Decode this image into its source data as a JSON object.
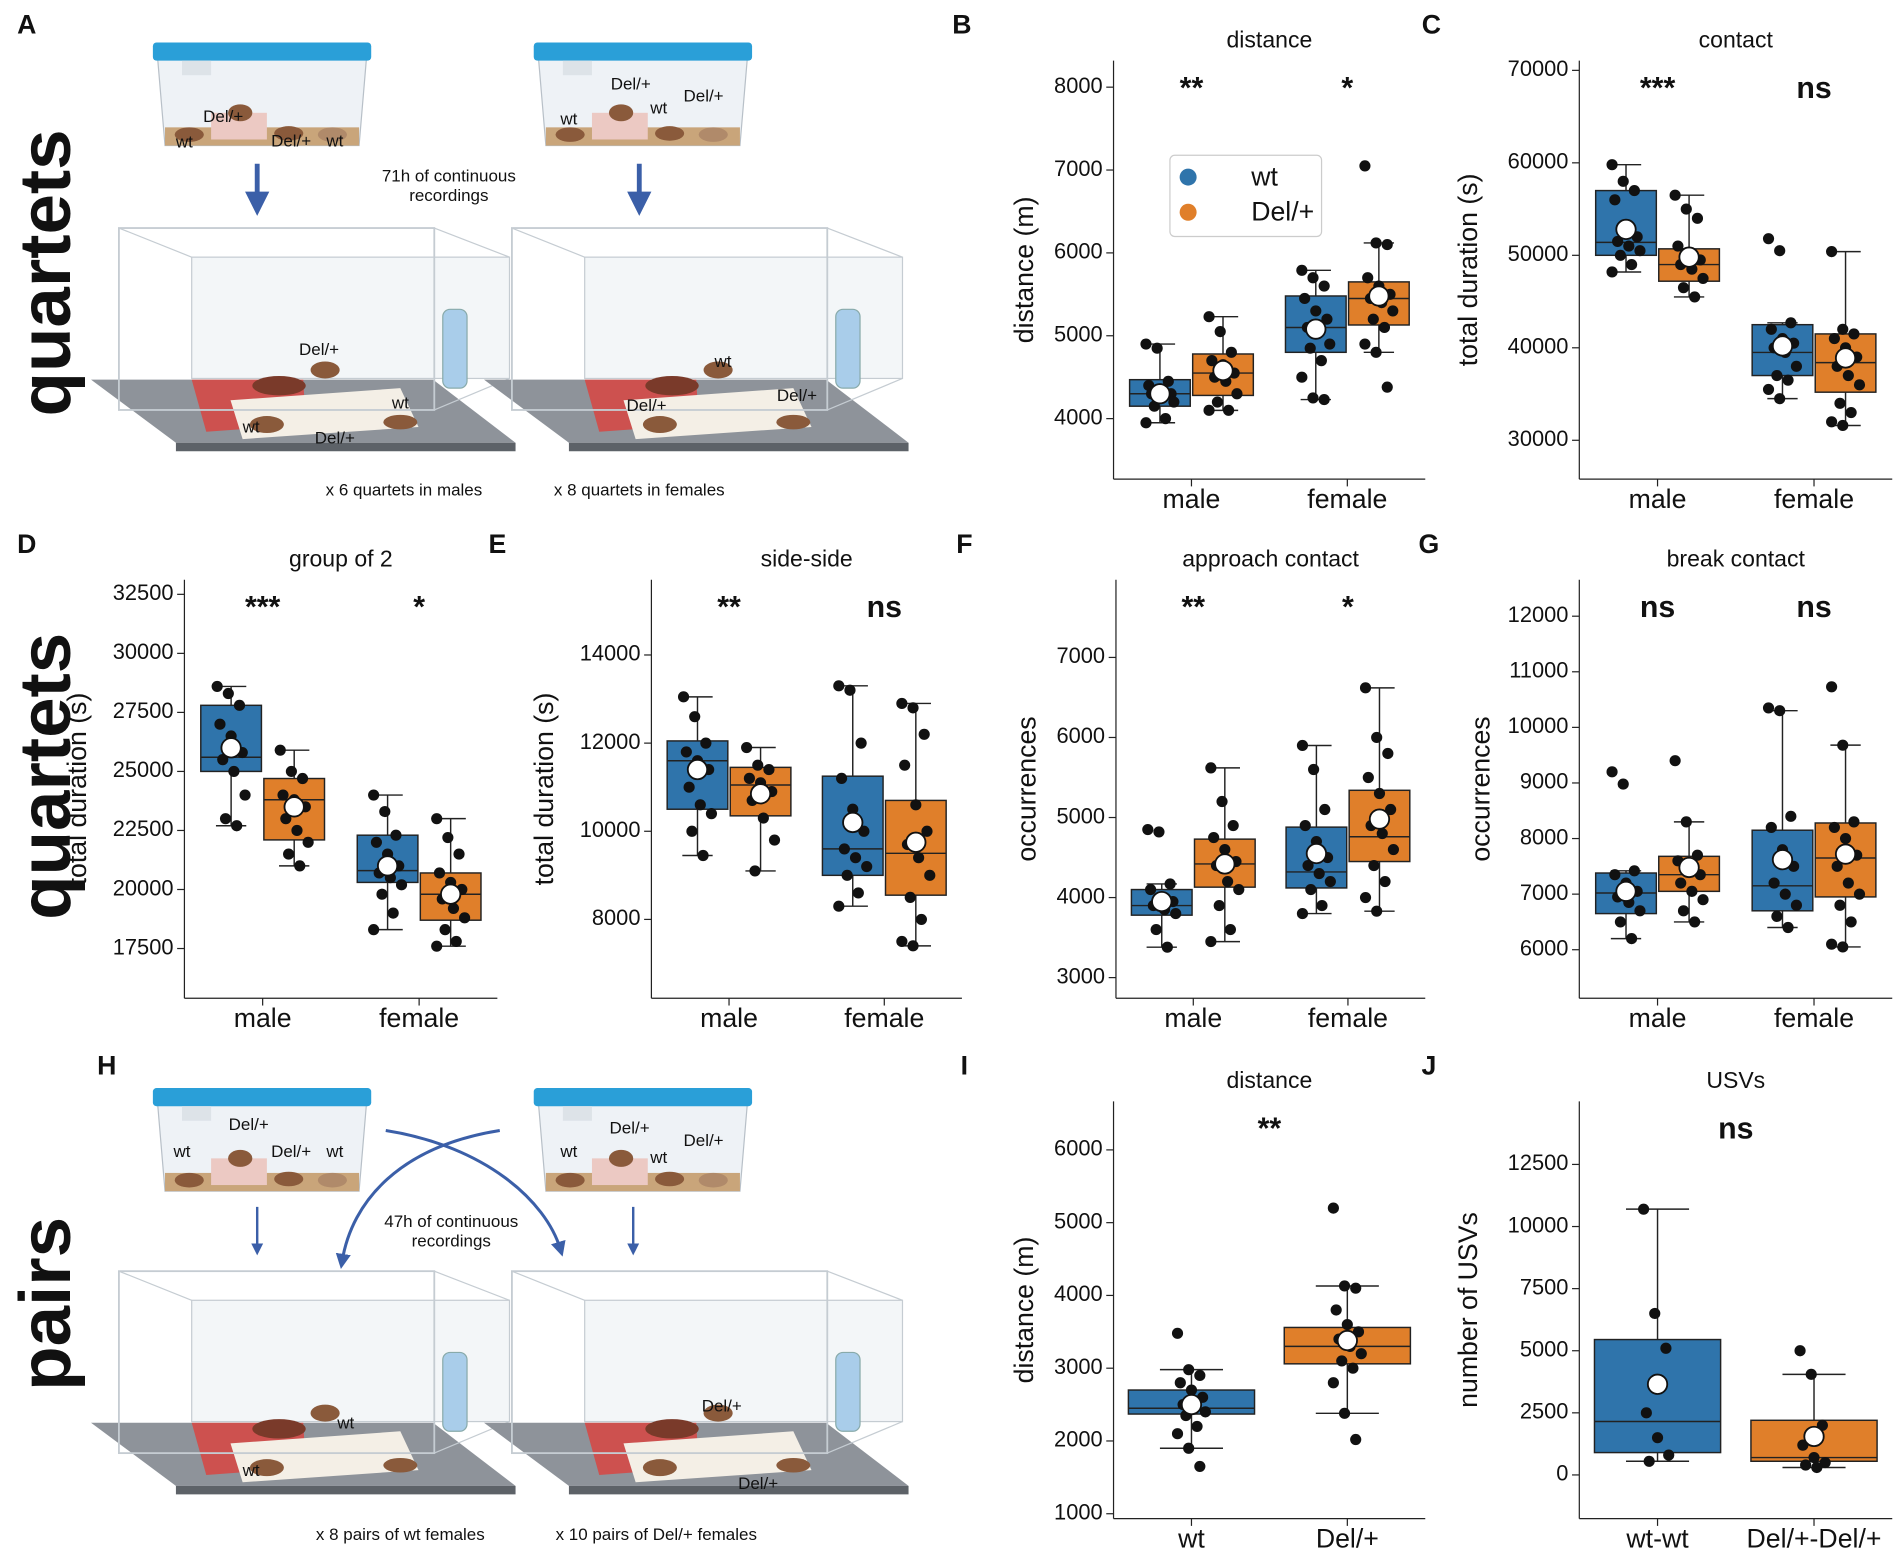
{
  "panel_labels": [
    "A",
    "B",
    "C",
    "D",
    "E",
    "F",
    "G",
    "H",
    "I",
    "J"
  ],
  "row_labels": [
    "quartets",
    "quartets",
    "pairs"
  ],
  "illustrations": {
    "A": {
      "cage_labels": [
        "wt",
        "Del/+",
        "Del/+",
        "wt",
        "Del/+",
        "Del/+",
        "wt",
        "wt",
        "Del/+",
        "wt",
        "wt",
        "Del/+",
        "wt",
        "Del/+",
        "Del/+"
      ],
      "note": [
        "71h of continuous",
        "recordings"
      ],
      "captions": [
        "x 6 quartets in males",
        "x 8 quartets in females"
      ]
    },
    "H": {
      "cage_labels": [
        "Del/+",
        "wt",
        "Del/+",
        "wt",
        "Del/+",
        "wt",
        "wt",
        "Del/+",
        "wt",
        "wt",
        "Del/+",
        "Del/+"
      ],
      "note": [
        "47h of continuous",
        "recordings"
      ],
      "captions": [
        "x 8 pairs of wt females",
        "x 10 pairs of Del/+ females"
      ]
    }
  },
  "chart_data": [
    {
      "type": "box",
      "title": "distance",
      "ylabel": "distance (m)",
      "categories": [
        "male",
        "female"
      ],
      "ylim": [
        3270,
        8320
      ],
      "yticks": [
        4000,
        5000,
        6000,
        7000,
        8000
      ],
      "annotations": [
        "**",
        "*"
      ],
      "legend": "upper center",
      "series": [
        {
          "name": "wt",
          "color": "#2f74ab",
          "boxes": [
            {
              "whislo": 3950,
              "q1": 4150,
              "med": 4300,
              "q3": 4470,
              "whishi": 4900,
              "mean": 4300,
              "points": [
                4900,
                4850,
                4450,
                4400,
                4350,
                4300,
                4300,
                4250,
                4200,
                4150,
                4000,
                3950
              ]
            },
            {
              "whislo": 4230,
              "q1": 4800,
              "med": 5100,
              "q3": 5480,
              "whishi": 5790,
              "mean": 5080,
              "points": [
                5790,
                5700,
                5600,
                5450,
                5300,
                5200,
                5100,
                5050,
                4900,
                4850,
                4700,
                4500,
                4250,
                4230
              ]
            }
          ]
        },
        {
          "name": "Del/+",
          "color": "#e07f2a",
          "boxes": [
            {
              "whislo": 4100,
              "q1": 4280,
              "med": 4550,
              "q3": 4780,
              "whishi": 5230,
              "mean": 4580,
              "points": [
                5230,
                5050,
                4800,
                4700,
                4650,
                4550,
                4500,
                4450,
                4300,
                4200,
                4100,
                4100
              ]
            },
            {
              "whislo": 4800,
              "q1": 5130,
              "med": 5450,
              "q3": 5650,
              "whishi": 6120,
              "mean": 5480,
              "points": [
                7050,
                6120,
                6100,
                5700,
                5600,
                5500,
                5450,
                5400,
                5300,
                5200,
                5100,
                4900,
                4800,
                4380
              ]
            }
          ]
        }
      ]
    },
    {
      "type": "box",
      "title": "contact",
      "ylabel": "total duration (s)",
      "categories": [
        "male",
        "female"
      ],
      "ylim": [
        25800,
        71050
      ],
      "yticks": [
        30000,
        40000,
        50000,
        60000,
        70000
      ],
      "annotations": [
        "***",
        "ns"
      ],
      "series": [
        {
          "color": "#2f74ab",
          "boxes": [
            {
              "whislo": 48200,
              "q1": 50000,
              "med": 51400,
              "q3": 57000,
              "whishi": 59800,
              "mean": 52800,
              "points": [
                59800,
                58000,
                57000,
                56000,
                53000,
                52000,
                51500,
                51000,
                50500,
                50000,
                49000,
                48200
              ]
            },
            {
              "whislo": 34500,
              "q1": 37000,
              "med": 39500,
              "q3": 42500,
              "whishi": 42700,
              "mean": 40200,
              "points": [
                51800,
                50500,
                42700,
                42000,
                41000,
                40500,
                40000,
                39500,
                38000,
                37000,
                36500,
                35500,
                34500
              ]
            }
          ]
        },
        {
          "color": "#e07f2a",
          "boxes": [
            {
              "whislo": 45500,
              "q1": 47200,
              "med": 49000,
              "q3": 50700,
              "whishi": 56500,
              "mean": 49800,
              "points": [
                56500,
                55000,
                54000,
                51000,
                50000,
                49500,
                49000,
                48500,
                47500,
                46500,
                45500
              ]
            },
            {
              "whislo": 31600,
              "q1": 35200,
              "med": 38400,
              "q3": 41500,
              "whishi": 50400,
              "mean": 38900,
              "points": [
                50400,
                42000,
                41500,
                41000,
                40000,
                39000,
                38000,
                37000,
                36000,
                34000,
                33000,
                32000,
                31600
              ]
            }
          ]
        }
      ]
    },
    {
      "type": "box",
      "title": "group of 2",
      "ylabel": "total duration (s)",
      "categories": [
        "male",
        "female"
      ],
      "ylim": [
        15394,
        33116
      ],
      "yticks": [
        17500,
        20000,
        22500,
        25000,
        27500,
        30000,
        32500
      ],
      "annotations": [
        "***",
        "*"
      ],
      "series": [
        {
          "color": "#2f74ab",
          "boxes": [
            {
              "whislo": 22700,
              "q1": 25000,
              "med": 25600,
              "q3": 27800,
              "whishi": 28600,
              "mean": 26000,
              "points": [
                28600,
                28300,
                27800,
                27000,
                26500,
                25800,
                25500,
                25000,
                24000,
                23000,
                22700
              ]
            },
            {
              "whislo": 18300,
              "q1": 20300,
              "med": 20800,
              "q3": 22300,
              "whishi": 24000,
              "mean": 21000,
              "points": [
                24000,
                23300,
                22300,
                22000,
                21500,
                21000,
                20700,
                20500,
                20200,
                19800,
                19000,
                18300
              ]
            }
          ]
        },
        {
          "color": "#e07f2a",
          "boxes": [
            {
              "whislo": 21000,
              "q1": 22100,
              "med": 23800,
              "q3": 24700,
              "whishi": 25900,
              "mean": 23500,
              "points": [
                25900,
                25000,
                24700,
                24000,
                23800,
                23500,
                23000,
                22500,
                22000,
                21500,
                21000
              ]
            },
            {
              "whislo": 17600,
              "q1": 18700,
              "med": 19800,
              "q3": 20700,
              "whishi": 23000,
              "mean": 19800,
              "points": [
                23000,
                22200,
                21500,
                20700,
                20300,
                20000,
                19600,
                19200,
                18800,
                18300,
                17800,
                17600
              ]
            }
          ]
        }
      ]
    },
    {
      "type": "box",
      "title": "side-side",
      "ylabel": "total duration (s)",
      "categories": [
        "male",
        "female"
      ],
      "ylim": [
        6211,
        15706
      ],
      "yticks": [
        8000,
        10000,
        12000,
        14000
      ],
      "annotations": [
        "**",
        "ns"
      ],
      "series": [
        {
          "color": "#2f74ab",
          "boxes": [
            {
              "whislo": 9450,
              "q1": 10500,
              "med": 11600,
              "q3": 12050,
              "whishi": 13050,
              "mean": 11400,
              "points": [
                13050,
                12600,
                12000,
                11800,
                11600,
                11400,
                11000,
                10600,
                10400,
                10000,
                9450
              ]
            },
            {
              "whislo": 8300,
              "q1": 9000,
              "med": 9600,
              "q3": 11250,
              "whishi": 13300,
              "mean": 10200,
              "points": [
                13300,
                13200,
                12000,
                11200,
                10500,
                10000,
                9600,
                9400,
                9200,
                9000,
                8600,
                8300
              ]
            }
          ]
        },
        {
          "color": "#e07f2a",
          "boxes": [
            {
              "whislo": 9100,
              "q1": 10350,
              "med": 11050,
              "q3": 11450,
              "whishi": 11900,
              "mean": 10850,
              "points": [
                11900,
                11500,
                11400,
                11200,
                11100,
                10900,
                10700,
                10300,
                9800,
                9100
              ]
            },
            {
              "whislo": 7400,
              "q1": 8550,
              "med": 9500,
              "q3": 10700,
              "whishi": 12900,
              "mean": 9750,
              "points": [
                12900,
                12800,
                12200,
                11500,
                10600,
                10000,
                9700,
                9400,
                9000,
                8500,
                8000,
                7500,
                7400
              ]
            }
          ]
        }
      ]
    },
    {
      "type": "box",
      "title": "approach contact",
      "ylabel": "occurrences",
      "categories": [
        "male",
        "female"
      ],
      "ylim": [
        2742,
        7970
      ],
      "yticks": [
        3000,
        4000,
        5000,
        6000,
        7000
      ],
      "annotations": [
        "**",
        "*"
      ],
      "series": [
        {
          "color": "#2f74ab",
          "boxes": [
            {
              "whislo": 3380,
              "q1": 3780,
              "med": 3900,
              "q3": 4100,
              "whishi": 4170,
              "mean": 3950,
              "points": [
                4850,
                4820,
                4170,
                4100,
                4000,
                3950,
                3900,
                3850,
                3800,
                3600,
                3380
              ]
            },
            {
              "whislo": 3800,
              "q1": 4120,
              "med": 4320,
              "q3": 4880,
              "whishi": 5900,
              "mean": 4550,
              "points": [
                5900,
                5600,
                5100,
                4900,
                4700,
                4500,
                4400,
                4300,
                4200,
                4100,
                3900,
                3800
              ]
            }
          ]
        },
        {
          "color": "#e07f2a",
          "boxes": [
            {
              "whislo": 3450,
              "q1": 4130,
              "med": 4420,
              "q3": 4730,
              "whishi": 5620,
              "mean": 4420,
              "points": [
                5620,
                5200,
                4900,
                4750,
                4600,
                4450,
                4400,
                4200,
                4100,
                3900,
                3600,
                3450
              ]
            },
            {
              "whislo": 3830,
              "q1": 4450,
              "med": 4760,
              "q3": 5340,
              "whishi": 6620,
              "mean": 4980,
              "points": [
                6620,
                6000,
                5800,
                5500,
                5300,
                5100,
                4900,
                4800,
                4600,
                4400,
                4200,
                4000,
                3830
              ]
            }
          ]
        }
      ]
    },
    {
      "type": "box",
      "title": "break contact",
      "ylabel": "occurrences",
      "categories": [
        "male",
        "female"
      ],
      "ylim": [
        5127,
        12655
      ],
      "yticks": [
        6000,
        7000,
        8000,
        9000,
        10000,
        11000,
        12000
      ],
      "annotations": [
        "ns",
        "ns"
      ],
      "series": [
        {
          "color": "#2f74ab",
          "boxes": [
            {
              "whislo": 6200,
              "q1": 6650,
              "med": 7020,
              "q3": 7380,
              "whishi": 7420,
              "mean": 7050,
              "points": [
                9200,
                8980,
                7420,
                7350,
                7200,
                7050,
                6950,
                6850,
                6700,
                6500,
                6200
              ]
            },
            {
              "whislo": 6400,
              "q1": 6700,
              "med": 7150,
              "q3": 8150,
              "whishi": 10300,
              "mean": 7620,
              "points": [
                10350,
                10300,
                8400,
                8200,
                7800,
                7500,
                7200,
                7000,
                6800,
                6600,
                6400
              ]
            }
          ]
        },
        {
          "color": "#e07f2a",
          "boxes": [
            {
              "whislo": 6500,
              "q1": 7050,
              "med": 7350,
              "q3": 7680,
              "whishi": 8300,
              "mean": 7480,
              "points": [
                9400,
                8300,
                7700,
                7600,
                7450,
                7350,
                7200,
                7050,
                6900,
                6700,
                6500
              ]
            },
            {
              "whislo": 6050,
              "q1": 6950,
              "med": 7650,
              "q3": 8280,
              "whishi": 9680,
              "mean": 7720,
              "points": [
                10730,
                9680,
                8300,
                8200,
                8000,
                7700,
                7500,
                7200,
                7000,
                6800,
                6500,
                6100,
                6050
              ]
            }
          ]
        }
      ]
    },
    {
      "type": "box",
      "title": "distance",
      "ylabel": "distance (m)",
      "categories": [
        "wt",
        "Del/+"
      ],
      "ylim": [
        933,
        6667
      ],
      "yticks": [
        1000,
        2000,
        3000,
        4000,
        5000,
        6000
      ],
      "annotations": [
        "**"
      ],
      "colors": [
        "#2f74ab",
        "#e07f2a"
      ],
      "boxes": [
        {
          "whislo": 1900,
          "q1": 2370,
          "med": 2450,
          "q3": 2700,
          "whishi": 2980,
          "mean": 2500,
          "points": [
            3480,
            2980,
            2900,
            2800,
            2700,
            2600,
            2500,
            2450,
            2400,
            2350,
            2200,
            2100,
            1900,
            1650
          ]
        },
        {
          "whislo": 2380,
          "q1": 3060,
          "med": 3300,
          "q3": 3560,
          "whishi": 4130,
          "mean": 3380,
          "points": [
            5200,
            4130,
            4100,
            3800,
            3600,
            3500,
            3400,
            3300,
            3200,
            3100,
            3000,
            2800,
            2380,
            2020
          ]
        }
      ]
    },
    {
      "type": "box",
      "title": "USVs",
      "ylabel": "number of USVs",
      "categories": [
        "wt-wt",
        "Del/+-Del/+"
      ],
      "ylim": [
        -1758,
        15039
      ],
      "yticks": [
        0,
        2500,
        5000,
        7500,
        10000,
        12500
      ],
      "annotations": [
        "ns"
      ],
      "colors": [
        "#2f74ab",
        "#e07f2a"
      ],
      "boxes": [
        {
          "whislo": 550,
          "q1": 900,
          "med": 2150,
          "q3": 5450,
          "whishi": 10700,
          "mean": 3650,
          "points": [
            10700,
            6500,
            5100,
            2500,
            1500,
            800,
            550
          ]
        },
        {
          "whislo": 300,
          "q1": 550,
          "med": 700,
          "q3": 2200,
          "whishi": 4050,
          "mean": 1550,
          "points": [
            5000,
            4050,
            2000,
            1200,
            700,
            500,
            400,
            300
          ]
        }
      ]
    }
  ]
}
